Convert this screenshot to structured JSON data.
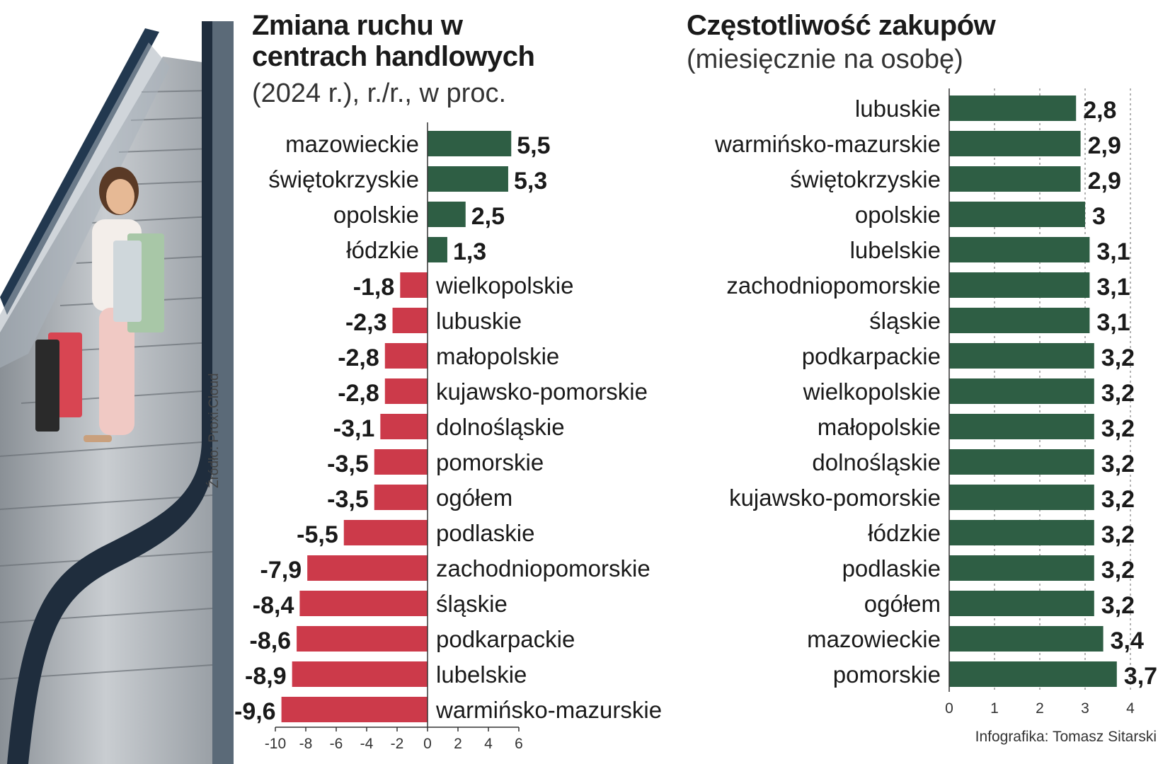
{
  "left_chart": {
    "title": "Zmiana ruchu w centrach handlowych",
    "subtitle": "(2024 r.), r./r., w proc."
  },
  "right_chart": {
    "title": "Częstotliwość zakupów",
    "subtitle": "(miesięcznie na osobę)"
  },
  "source": "Źródło: Proxi.Cloud",
  "credit": "Infografika: Tomasz Sitarski",
  "colors": {
    "positive": "#2e5e44",
    "negative": "#cc3a4a",
    "grid": "#999999"
  },
  "chart_data": [
    {
      "type": "bar",
      "orientation": "horizontal",
      "title": "Zmiana ruchu w centrach handlowych",
      "subtitle": "(2024 r.), r./r., w proc.",
      "categories": [
        "mazowieckie",
        "świętokrzyskie",
        "opolskie",
        "łódzkie",
        "wielkopolskie",
        "lubuskie",
        "małopolskie",
        "kujawsko-pomorskie",
        "dolnośląskie",
        "pomorskie",
        "ogółem",
        "podlaskie",
        "zachodniopomorskie",
        "śląskie",
        "podkarpackie",
        "lubelskie",
        "warmińsko-mazurskie"
      ],
      "values": [
        5.5,
        5.3,
        2.5,
        1.3,
        -1.8,
        -2.3,
        -2.8,
        -2.8,
        -3.1,
        -3.5,
        -3.5,
        -5.5,
        -7.9,
        -8.4,
        -8.6,
        -8.9,
        -9.6
      ],
      "value_labels": [
        "5,5",
        "5,3",
        "2,5",
        "1,3",
        "-1,8",
        "-2,3",
        "-2,8",
        "-2,8",
        "-3,1",
        "-3,5",
        "-3,5",
        "-5,5",
        "-7,9",
        "-8,4",
        "-8,6",
        "-8,9",
        "-9,6"
      ],
      "xlim": [
        -10,
        6
      ],
      "x_ticks": [
        -10,
        -8,
        -6,
        -4,
        -2,
        0,
        2,
        4,
        6
      ],
      "x_tick_labels": [
        "-10",
        "-8",
        "-6",
        "-4",
        "-2",
        "0",
        "2",
        "4",
        "6"
      ],
      "grid": false
    },
    {
      "type": "bar",
      "orientation": "horizontal",
      "title": "Częstotliwość zakupów",
      "subtitle": "(miesięcznie na osobę)",
      "categories": [
        "lubuskie",
        "warmińsko-mazurskie",
        "świętokrzyskie",
        "opolskie",
        "lubelskie",
        "zachodniopomorskie",
        "śląskie",
        "podkarpackie",
        "wielkopolskie",
        "małopolskie",
        "dolnośląskie",
        "kujawsko-pomorskie",
        "łódzkie",
        "podlaskie",
        "ogółem",
        "mazowieckie",
        "pomorskie"
      ],
      "values": [
        2.8,
        2.9,
        2.9,
        3,
        3.1,
        3.1,
        3.1,
        3.2,
        3.2,
        3.2,
        3.2,
        3.2,
        3.2,
        3.2,
        3.2,
        3.4,
        3.7
      ],
      "value_labels": [
        "2,8",
        "2,9",
        "2,9",
        "3",
        "3,1",
        "3,1",
        "3,1",
        "3,2",
        "3,2",
        "3,2",
        "3,2",
        "3,2",
        "3,2",
        "3,2",
        "3,2",
        "3,4",
        "3,7"
      ],
      "xlim": [
        0,
        4
      ],
      "x_ticks": [
        0,
        1,
        2,
        3,
        4
      ],
      "x_tick_labels": [
        "0",
        "1",
        "2",
        "3",
        "4"
      ],
      "grid": true
    }
  ]
}
